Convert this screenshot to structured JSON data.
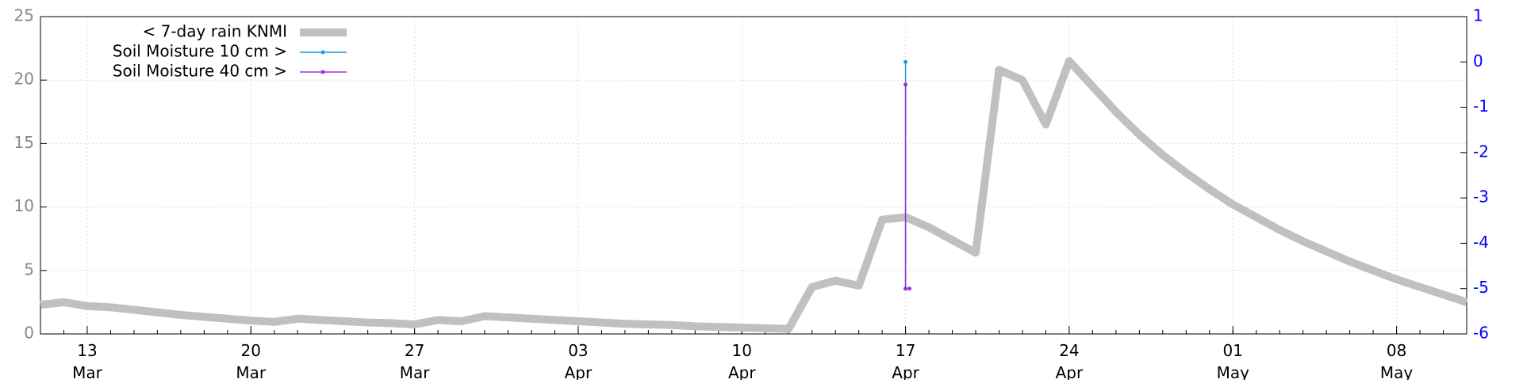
{
  "chart_data": {
    "type": "line",
    "x": [
      "03-11",
      "03-12",
      "03-13",
      "03-14",
      "03-15",
      "03-16",
      "03-17",
      "03-18",
      "03-19",
      "03-20",
      "03-21",
      "03-22",
      "03-23",
      "03-24",
      "03-25",
      "03-26",
      "03-27",
      "03-28",
      "03-29",
      "03-30",
      "03-31",
      "04-01",
      "04-02",
      "04-03",
      "04-04",
      "04-05",
      "04-06",
      "04-07",
      "04-08",
      "04-09",
      "04-10",
      "04-11",
      "04-12",
      "04-13",
      "04-14",
      "04-15",
      "04-16",
      "04-17",
      "04-18",
      "04-19",
      "04-20",
      "04-21",
      "04-22",
      "04-23",
      "04-24",
      "04-25",
      "04-26",
      "04-27",
      "04-28",
      "04-29",
      "04-30",
      "05-01",
      "05-02",
      "05-03",
      "05-04",
      "05-05",
      "05-06",
      "05-07",
      "05-08",
      "05-09",
      "05-10",
      "05-11"
    ],
    "series": [
      {
        "name": "< 7-day rain KNMI",
        "color": "#c0c0c0",
        "values": [
          2.3,
          2.5,
          2.2,
          2.1,
          1.9,
          1.7,
          1.5,
          1.35,
          1.2,
          1.05,
          0.95,
          1.2,
          1.1,
          1.0,
          0.9,
          0.85,
          0.75,
          1.1,
          1.0,
          1.4,
          1.3,
          1.2,
          1.1,
          1.0,
          0.9,
          0.8,
          0.75,
          0.7,
          0.6,
          0.55,
          0.5,
          0.45,
          0.4,
          3.7,
          4.2,
          3.8,
          9.0,
          9.2,
          8.4,
          7.4,
          6.4,
          20.8,
          20.0,
          16.5,
          21.5,
          19.5,
          17.5,
          15.7,
          14.1,
          12.7,
          11.4,
          10.2,
          9.2,
          8.2,
          7.3,
          6.5,
          5.7,
          5.0,
          4.3,
          3.7,
          3.1,
          2.5
        ]
      },
      {
        "name": "Soil Moisture 10 cm >",
        "color": "#1b9de0",
        "axis": "y2",
        "x": [
          "04-17",
          "04-17"
        ],
        "values": [
          0,
          -5
        ]
      },
      {
        "name": "Soil Moisture 40 cm >",
        "color": "#9b30e0",
        "axis": "y2",
        "x": [
          "04-17",
          "04-17",
          "04-17"
        ],
        "values": [
          -0.5,
          -5,
          -5
        ]
      }
    ],
    "xlim": [
      "03-11",
      "05-11"
    ],
    "xticks": [
      {
        "value": "03-13",
        "label": "13 Mar"
      },
      {
        "value": "03-20",
        "label": "20 Mar"
      },
      {
        "value": "03-27",
        "label": "27 Mar"
      },
      {
        "value": "04-03",
        "label": "03 Apr"
      },
      {
        "value": "04-10",
        "label": "10 Apr"
      },
      {
        "value": "04-17",
        "label": "17 Apr"
      },
      {
        "value": "04-24",
        "label": "24 Apr"
      },
      {
        "value": "05-01",
        "label": "01 May"
      },
      {
        "value": "05-08",
        "label": "08 May"
      }
    ],
    "ylim": [
      0,
      25
    ],
    "yticks": [
      0,
      5,
      10,
      15,
      20,
      25
    ],
    "y2lim": [
      -6,
      1
    ],
    "y2ticks": [
      -6,
      -5,
      -4,
      -3,
      -2,
      -1,
      0,
      1
    ],
    "grid": true,
    "legend": "top-left"
  }
}
